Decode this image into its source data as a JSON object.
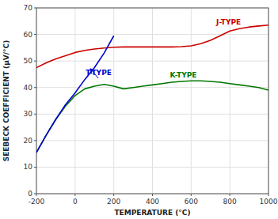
{
  "chart_data": {
    "type": "line",
    "xlabel": "TEMPERATURE (°C)",
    "ylabel": "SEEBECK COEFFICIENT (μV/°C)",
    "xlim": [
      -200,
      1000
    ],
    "ylim": [
      0,
      70
    ],
    "xticks": [
      -200,
      0,
      200,
      400,
      600,
      800,
      1000
    ],
    "yticks": [
      0,
      10,
      20,
      30,
      40,
      50,
      60,
      70
    ],
    "grid": true,
    "series": [
      {
        "color": "#cc0000",
        "x": [
          -200,
          -150,
          -100,
          -50,
          0,
          50,
          100,
          150,
          200,
          250,
          300,
          350,
          400,
          450,
          500,
          550,
          600,
          650,
          700,
          750,
          800,
          850,
          900,
          950,
          1000
        ],
        "values": [
          47.5,
          49.3,
          50.8,
          52.0,
          53.2,
          54.0,
          54.5,
          54.9,
          55.2,
          55.3,
          55.3,
          55.3,
          55.3,
          55.3,
          55.3,
          55.4,
          55.7,
          56.5,
          57.8,
          59.5,
          61.3,
          62.2,
          62.8,
          63.2,
          63.5
        ]
      },
      {
        "color": "#007700",
        "x": [
          -200,
          -150,
          -100,
          -50,
          0,
          50,
          100,
          150,
          200,
          250,
          300,
          350,
          400,
          450,
          500,
          550,
          600,
          650,
          700,
          750,
          800,
          850,
          900,
          950,
          1000
        ],
        "values": [
          15.5,
          22.0,
          28.0,
          33.0,
          37.0,
          39.5,
          40.5,
          41.2,
          40.5,
          39.5,
          40.0,
          40.5,
          41.0,
          41.5,
          42.0,
          42.3,
          42.5,
          42.5,
          42.3,
          42.0,
          41.5,
          41.0,
          40.5,
          40.0,
          39.0
        ]
      },
      {
        "color": "#0000cc",
        "x": [
          -200,
          -150,
          -100,
          -50,
          0,
          50,
          100,
          150,
          200
        ],
        "values": [
          15.5,
          22.0,
          28.0,
          33.5,
          38.0,
          43.0,
          47.5,
          53.0,
          59.5
        ]
      }
    ],
    "annotations": [
      {
        "text": "J-TYPE",
        "x": 730,
        "y": 63.5,
        "color": "#cc0000"
      },
      {
        "text": "K-TYPE",
        "x": 490,
        "y": 43.5,
        "color": "#007700"
      },
      {
        "text": "T-TYPE",
        "x": 55,
        "y": 44.5,
        "color": "#0000cc"
      }
    ],
    "arrows": [
      {
        "from": [
          120,
          43.5
        ],
        "to": [
          80,
          47.0
        ],
        "color": "#0000cc"
      }
    ]
  }
}
